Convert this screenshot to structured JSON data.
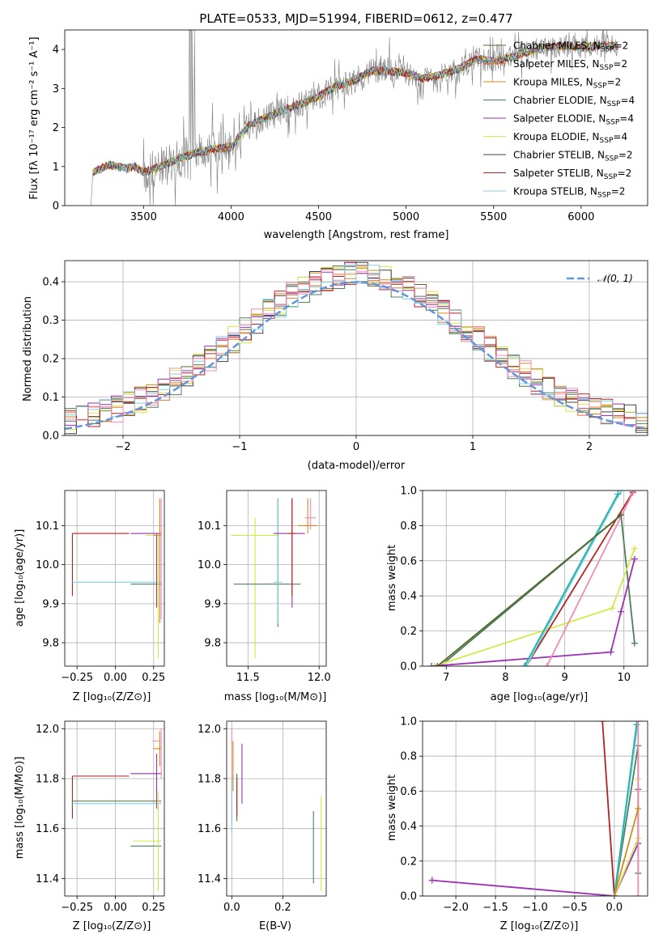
{
  "chart_data": [
    {
      "id": "spectrum",
      "type": "line",
      "title": "PLATE=0533, MJD=51994, FIBERID=0612, z=0.477",
      "xlabel": "wavelength [Angstrom, rest frame]",
      "ylabel": "Flux [fλ 10⁻¹⁷ erg cm⁻² s⁻¹ A⁻¹]",
      "xlim": [
        3050,
        6380
      ],
      "ylim": [
        0,
        4.5
      ],
      "xticks": [
        3500,
        4000,
        4500,
        5000,
        5500,
        6000
      ],
      "yticks": [
        0,
        1,
        2,
        3,
        4
      ],
      "grid": false,
      "legend_position": "upper right",
      "data_points": [
        [
          3200,
          0
        ],
        [
          3210,
          0.85
        ],
        [
          3260,
          0.95
        ],
        [
          3300,
          1.05
        ],
        [
          3350,
          1.0
        ],
        [
          3400,
          0.95
        ],
        [
          3450,
          1.0
        ],
        [
          3500,
          0.85
        ],
        [
          3600,
          1.0
        ],
        [
          3700,
          1.2
        ],
        [
          3800,
          1.35
        ],
        [
          3900,
          1.45
        ],
        [
          4000,
          1.5
        ],
        [
          4100,
          2.05
        ],
        [
          4200,
          2.25
        ],
        [
          4300,
          2.45
        ],
        [
          4400,
          2.6
        ],
        [
          4500,
          2.8
        ],
        [
          4600,
          3.05
        ],
        [
          4700,
          3.2
        ],
        [
          4800,
          3.45
        ],
        [
          4900,
          3.45
        ],
        [
          5000,
          3.4
        ],
        [
          5100,
          3.25
        ],
        [
          5200,
          3.35
        ],
        [
          5300,
          3.5
        ],
        [
          5400,
          3.75
        ],
        [
          5500,
          3.7
        ],
        [
          5600,
          3.8
        ],
        [
          5700,
          3.95
        ],
        [
          5800,
          4.05
        ],
        [
          5900,
          4.1
        ],
        [
          6000,
          4.05
        ],
        [
          6100,
          4.1
        ],
        [
          6200,
          4.1
        ]
      ],
      "series": [
        {
          "name": "Chabrier MILES, N_SSP=2",
          "color": "#556b2f"
        },
        {
          "name": "Salpeter MILES, N_SSP=2",
          "color": "#e8743a"
        },
        {
          "name": "Kroupa MILES, N_SSP=2",
          "color": "#d48a1e"
        },
        {
          "name": "Chabrier ELODIE, N_SSP=4",
          "color": "#4e7f5c"
        },
        {
          "name": "Salpeter ELODIE, N_SSP=4",
          "color": "#9b30b5"
        },
        {
          "name": "Kroupa ELODIE, N_SSP=4",
          "color": "#d4e84a"
        },
        {
          "name": "Chabrier STELIB, N_SSP=2",
          "color": "#404040"
        },
        {
          "name": "Salpeter STELIB, N_SSP=2",
          "color": "#b22222"
        },
        {
          "name": "Kroupa STELIB, N_SSP=2",
          "color": "#7fd0e0"
        }
      ],
      "data_color": "#808080"
    },
    {
      "id": "residuals",
      "type": "line",
      "xlabel": "(data-model)/error",
      "ylabel": "Normed distribution",
      "xlim": [
        -2.5,
        2.5
      ],
      "ylim": [
        0,
        0.455
      ],
      "xticks": [
        -2,
        -1,
        0,
        1,
        2
      ],
      "yticks": [
        0.0,
        0.1,
        0.2,
        0.3,
        0.4
      ],
      "grid": true,
      "legend_position": "upper right",
      "legend_label": "𝒩(0, 1)",
      "gaussian": {
        "mean": 0,
        "sigma": 1,
        "color": "#6495db"
      },
      "hist_colors": [
        "#556b2f",
        "#e8743a",
        "#d48a1e",
        "#4e7f5c",
        "#9b30b5",
        "#d4e84a",
        "#404040",
        "#b22222",
        "#7fd0e0",
        "#f08cb4"
      ]
    },
    {
      "id": "age_vs_Z",
      "type": "scatter",
      "xlabel": "Z [log₁₀(Z/Z⊙)]",
      "ylabel": "age  [log₁₀(age/yr)]",
      "xlim": [
        -0.33,
        0.32
      ],
      "ylim": [
        9.74,
        10.19
      ],
      "xticks": [
        -0.25,
        0.0,
        0.25
      ],
      "xticklabels": [
        "−0.25",
        "0.00",
        "0.25"
      ],
      "yticks": [
        9.8,
        9.9,
        10.0,
        10.1
      ],
      "grid": true,
      "points": [
        {
          "x": -0.28,
          "x_lo": -0.28,
          "x_hi": 0.09,
          "y": 10.08,
          "y_lo": 9.92,
          "y_hi": 10.08,
          "color": "#b22222"
        },
        {
          "x": -0.28,
          "x_lo": -0.28,
          "x_hi": 0.3,
          "y": 9.955,
          "y_lo": 9.955,
          "y_hi": 9.955,
          "color": "#7fd0e0"
        },
        {
          "x": 0.27,
          "x_lo": 0.1,
          "x_hi": 0.3,
          "y": 10.08,
          "y_lo": 9.89,
          "y_hi": 10.08,
          "color": "#9b30b5"
        },
        {
          "x": 0.27,
          "x_lo": 0.1,
          "x_hi": 0.3,
          "y": 9.95,
          "y_lo": 9.95,
          "y_hi": 9.95,
          "color": "#4e7f5c"
        },
        {
          "x": 0.28,
          "x_lo": 0.2,
          "x_hi": 0.3,
          "y": 10.075,
          "y_lo": 9.76,
          "y_hi": 10.075,
          "color": "#d4e84a"
        },
        {
          "x": 0.29,
          "x_lo": 0.25,
          "x_hi": 0.3,
          "y": 10.075,
          "y_lo": 9.85,
          "y_hi": 10.17,
          "color": "#d48a1e"
        },
        {
          "x": 0.3,
          "x_lo": 0.3,
          "x_hi": 0.3,
          "y": 10.0,
          "y_lo": 9.86,
          "y_hi": 10.17,
          "color": "#f08cb4"
        }
      ]
    },
    {
      "id": "age_vs_mass",
      "type": "scatter",
      "xlabel": "mass [log₁₀(M/M⊙)]",
      "xlim": [
        11.35,
        12.05
      ],
      "ylim": [
        9.74,
        10.19
      ],
      "xticks": [
        11.5,
        12.0
      ],
      "yticks": [
        9.8,
        9.9,
        10.0,
        10.1
      ],
      "grid": true,
      "points": [
        {
          "x": 11.55,
          "x_lo": 11.38,
          "x_hi": 11.72,
          "y": 10.075,
          "y_lo": 9.76,
          "y_hi": 10.12,
          "color": "#d4e84a"
        },
        {
          "x": 11.71,
          "x_lo": 11.4,
          "x_hi": 11.87,
          "y": 9.95,
          "y_lo": 9.84,
          "y_hi": 10.17,
          "color": "#4e7f5c"
        },
        {
          "x": 11.71,
          "x_lo": 11.68,
          "x_hi": 11.74,
          "y": 9.955,
          "y_lo": 9.85,
          "y_hi": 10.17,
          "color": "#7fd0e0"
        },
        {
          "x": 11.81,
          "x_lo": 11.68,
          "x_hi": 11.9,
          "y": 10.08,
          "y_lo": 9.89,
          "y_hi": 10.17,
          "color": "#9b30b5"
        },
        {
          "x": 11.81,
          "x_lo": 11.78,
          "x_hi": 11.84,
          "y": 10.08,
          "y_lo": 9.92,
          "y_hi": 10.17,
          "color": "#b22222"
        },
        {
          "x": 11.92,
          "x_lo": 11.85,
          "x_hi": 11.99,
          "y": 10.1,
          "y_lo": 10.08,
          "y_hi": 10.17,
          "color": "#d48a1e"
        },
        {
          "x": 11.94,
          "x_lo": 11.9,
          "x_hi": 11.98,
          "y": 10.12,
          "y_lo": 10.09,
          "y_hi": 10.17,
          "color": "#f08cb4"
        }
      ]
    },
    {
      "id": "massweight_vs_age",
      "type": "line",
      "xlabel": "age  [log₁₀(age/yr)]",
      "ylabel": "mass weight",
      "xlim": [
        6.6,
        10.4
      ],
      "ylim": [
        0,
        1.0
      ],
      "xticks": [
        7,
        8,
        9,
        10
      ],
      "yticks": [
        0.0,
        0.2,
        0.4,
        0.6,
        0.8,
        1.0
      ],
      "grid": true,
      "series": [
        {
          "color": "#4e7f5c",
          "points": [
            [
              6.9,
              0
            ],
            [
              9.95,
              0.86
            ],
            [
              10.18,
              0.13
            ]
          ]
        },
        {
          "color": "#d4e84a",
          "points": [
            [
              6.8,
              0
            ],
            [
              9.8,
              0.33
            ],
            [
              10.18,
              0.67
            ]
          ]
        },
        {
          "color": "#9b30b5",
          "points": [
            [
              6.75,
              0
            ],
            [
              9.78,
              0.08
            ],
            [
              9.95,
              0.31
            ],
            [
              10.18,
              0.61
            ]
          ]
        },
        {
          "color": "#b22222",
          "points": [
            [
              8.35,
              0
            ],
            [
              10.15,
              0.99
            ]
          ]
        },
        {
          "color": "#7fd0e0",
          "points": [
            [
              8.35,
              0
            ],
            [
              9.95,
              1.0
            ]
          ]
        },
        {
          "color": "#20b2aa",
          "points": [
            [
              8.32,
              0
            ],
            [
              9.9,
              0.98
            ]
          ]
        },
        {
          "color": "#f08cb4",
          "points": [
            [
              8.7,
              0
            ],
            [
              10.17,
              1.0
            ]
          ]
        },
        {
          "color": "#556b2f",
          "points": [
            [
              6.85,
              0
            ],
            [
              9.95,
              0.86
            ]
          ]
        }
      ]
    },
    {
      "id": "mass_vs_Z",
      "type": "scatter",
      "xlabel": "Z [log₁₀(Z/Z⊙)]",
      "ylabel": "mass [log₁₀(M/M⊙)]",
      "xlim": [
        -0.33,
        0.32
      ],
      "ylim": [
        11.33,
        12.03
      ],
      "xticks": [
        -0.25,
        0.0,
        0.25
      ],
      "xticklabels": [
        "−0.25",
        "0.00",
        "0.25"
      ],
      "yticks": [
        11.4,
        11.6,
        11.8,
        12.0
      ],
      "grid": true,
      "points": [
        {
          "x": -0.28,
          "x_lo": -0.28,
          "x_hi": 0.09,
          "y": 11.81,
          "y_lo": 11.64,
          "y_hi": 11.81,
          "color": "#b22222"
        },
        {
          "x": -0.28,
          "x_lo": -0.28,
          "x_hi": 0.3,
          "y": 11.71,
          "y_lo": 11.68,
          "y_hi": 11.72,
          "color": "#556b2f"
        },
        {
          "x": -0.28,
          "x_lo": -0.28,
          "x_hi": 0.3,
          "y": 11.7,
          "y_lo": 11.7,
          "y_hi": 11.7,
          "color": "#7fd0e0"
        },
        {
          "x": 0.27,
          "x_lo": 0.1,
          "x_hi": 0.3,
          "y": 11.82,
          "y_lo": 11.68,
          "y_hi": 11.9,
          "color": "#9b30b5"
        },
        {
          "x": 0.27,
          "x_lo": 0.1,
          "x_hi": 0.3,
          "y": 11.53,
          "y_lo": 11.53,
          "y_hi": 11.53,
          "color": "#4e7f5c"
        },
        {
          "x": 0.28,
          "x_lo": 0.12,
          "x_hi": 0.3,
          "y": 11.55,
          "y_lo": 11.35,
          "y_hi": 11.75,
          "color": "#d4e84a"
        },
        {
          "x": 0.29,
          "x_lo": 0.25,
          "x_hi": 0.3,
          "y": 11.92,
          "y_lo": 11.85,
          "y_hi": 11.99,
          "color": "#d48a1e"
        },
        {
          "x": 0.3,
          "x_lo": 0.24,
          "x_hi": 0.3,
          "y": 11.95,
          "y_lo": 11.8,
          "y_hi": 12.0,
          "color": "#f08cb4"
        }
      ]
    },
    {
      "id": "mass_vs_EBV",
      "type": "scatter",
      "xlabel": "E(B-V)",
      "xlim": [
        -0.02,
        0.37
      ],
      "ylim": [
        11.33,
        12.03
      ],
      "xticks": [
        0.0,
        0.2
      ],
      "xticklabels": [
        "0.0",
        "0.2"
      ],
      "yticks": [
        11.4,
        11.6,
        11.8,
        12.0
      ],
      "grid": true,
      "points": [
        {
          "x": 0.0,
          "y_lo": 11.62,
          "y_hi": 12.0,
          "color": "#f08cb4"
        },
        {
          "x": 0.0,
          "y_lo": 11.58,
          "y_hi": 11.8,
          "color": "#7fd0e0"
        },
        {
          "x": 0.005,
          "y_lo": 11.75,
          "y_hi": 11.95,
          "color": "#d48a1e"
        },
        {
          "x": 0.02,
          "y_lo": 11.63,
          "y_hi": 11.82,
          "color": "#556b2f"
        },
        {
          "x": 0.02,
          "y_lo": 11.65,
          "y_hi": 11.8,
          "color": "#b22222"
        },
        {
          "x": 0.04,
          "y_lo": 11.7,
          "y_hi": 11.94,
          "color": "#9b30b5"
        },
        {
          "x": 0.32,
          "y_lo": 11.38,
          "y_hi": 11.67,
          "color": "#4e7f5c"
        },
        {
          "x": 0.35,
          "y_lo": 11.35,
          "y_hi": 11.73,
          "color": "#d4e84a"
        }
      ]
    },
    {
      "id": "massweight_vs_Z",
      "type": "line",
      "xlabel": "Z [log₁₀(Z/Z⊙)]",
      "ylabel": "mass weight",
      "xlim": [
        -2.42,
        0.42
      ],
      "ylim": [
        0,
        1.0
      ],
      "xticks": [
        -2.0,
        -1.5,
        -1.0,
        -0.5,
        0.0
      ],
      "xticklabels": [
        "−2.0",
        "−1.5",
        "−1.0",
        "−0.5",
        "0.0"
      ],
      "yticks": [
        0.0,
        0.2,
        0.4,
        0.6,
        0.8,
        1.0
      ],
      "grid": true,
      "series": [
        {
          "color": "#9b30b5",
          "points": [
            [
              -2.3,
              0.09
            ],
            [
              0.0,
              0.0
            ],
            [
              0.3,
              0.3
            ],
            [
              0.3,
              0.61
            ]
          ]
        },
        {
          "color": "#b22222",
          "points": [
            [
              -0.15,
              1.0
            ],
            [
              0.0,
              0.0
            ]
          ]
        },
        {
          "color": "#4e7f5c",
          "points": [
            [
              0.0,
              0.0
            ],
            [
              0.3,
              0.86
            ],
            [
              0.3,
              0.13
            ]
          ]
        },
        {
          "color": "#d4e84a",
          "points": [
            [
              0.0,
              0.0
            ],
            [
              0.3,
              0.33
            ],
            [
              0.3,
              0.67
            ]
          ]
        },
        {
          "color": "#7fd0e0",
          "points": [
            [
              0.0,
              0.0
            ],
            [
              0.3,
              1.0
            ]
          ]
        },
        {
          "color": "#20b2aa",
          "points": [
            [
              0.0,
              0.0
            ],
            [
              0.28,
              0.98
            ]
          ]
        },
        {
          "color": "#f08cb4",
          "points": [
            [
              0.3,
              0.0
            ],
            [
              0.3,
              1.0
            ]
          ]
        },
        {
          "color": "#d48a1e",
          "points": [
            [
              0.0,
              0.0
            ],
            [
              0.3,
              0.5
            ]
          ]
        }
      ]
    }
  ]
}
